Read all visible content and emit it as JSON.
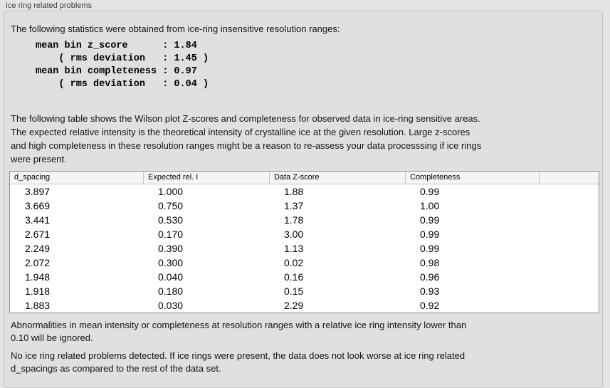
{
  "panel": {
    "title": "Ice ring related problems"
  },
  "intro": "The following statistics were obtained from ice-ring insensitive resolution ranges:",
  "stats_block": "mean bin z_score      : 1.84\n    ( rms deviation   : 1.45 )\nmean bin completeness : 0.97\n    ( rms deviation   : 0.04 )",
  "stats": {
    "mean_bin_z_score": "1.84",
    "z_score_rms_deviation": "1.45",
    "mean_bin_completeness": "0.97",
    "completeness_rms_deviation": "0.04"
  },
  "description": {
    "lines": [
      "The following table shows the Wilson plot Z-scores and completeness for observed data in ice-ring sensitive areas.",
      "The expected relative intensity is the theoretical intensity of crystalline ice at the given resolution. Large z-scores",
      "and high completeness in these resolution ranges might be a reason to re-assess your data processsing if ice rings",
      "were present."
    ]
  },
  "table": {
    "columns": [
      "d_spacing",
      "Expected rel. I",
      "Data Z-score",
      "Completeness",
      ""
    ],
    "rows": [
      [
        "3.897",
        "1.000",
        "1.88",
        "0.99"
      ],
      [
        "3.669",
        "0.750",
        "1.37",
        "1.00"
      ],
      [
        "3.441",
        "0.530",
        "1.78",
        "0.99"
      ],
      [
        "2.671",
        "0.170",
        "3.00",
        "0.99"
      ],
      [
        "2.249",
        "0.390",
        "1.13",
        "0.99"
      ],
      [
        "2.072",
        "0.300",
        "0.02",
        "0.98"
      ],
      [
        "1.948",
        "0.040",
        "0.16",
        "0.96"
      ],
      [
        "1.918",
        "0.180",
        "0.15",
        "0.93"
      ],
      [
        "1.883",
        "0.030",
        "2.29",
        "0.92"
      ]
    ]
  },
  "note": {
    "lines": [
      "Abnormalities in mean intensity or completeness at resolution ranges with a relative ice ring intensity lower than",
      "0.10 will be ignored."
    ]
  },
  "conclusion": {
    "lines": [
      "No ice ring related problems detected. If ice rings were present, the data does not look worse at ice ring related",
      "d_spacings as compared to the rest of the data set."
    ]
  },
  "colors": {
    "page_bg": "#e4e4e4",
    "box_bg": "#e0e0e0",
    "box_border": "#c2c2c2",
    "table_border": "#8f8f8f",
    "header_bg": "#f5f5f5",
    "header_divider": "#c6c6c6",
    "row_bg": "#ffffff"
  }
}
